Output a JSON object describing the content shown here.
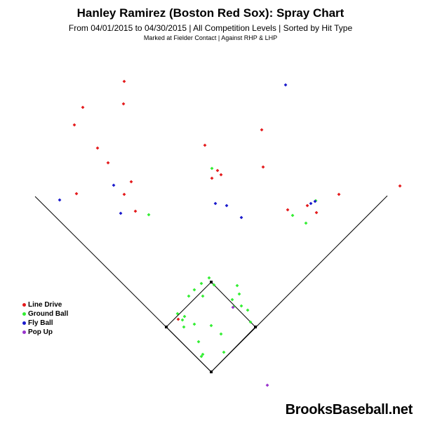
{
  "title": "Hanley Ramirez (Boston Red Sox): Spray Chart",
  "subtitle": "From 04/01/2015 to 04/30/2015 | All Competition Levels | Sorted by Hit Type",
  "note": "Marked at Fielder Contact |   Against RHP & LHP",
  "watermark": "BrooksBaseball.net",
  "legend": [
    {
      "label": "Line Drive",
      "color": "#e41a1c"
    },
    {
      "label": "Ground Ball",
      "color": "#33ee33"
    },
    {
      "label": "Fly Ball",
      "color": "#1a1acc"
    },
    {
      "label": "Pop Up",
      "color": "#9933cc"
    }
  ],
  "chart_data": {
    "type": "scatter",
    "title": "Hanley Ramirez (Boston Red Sox): Spray Chart",
    "xlabel": "",
    "ylabel": "",
    "grid": false,
    "legend_position": "left",
    "series": [
      {
        "name": "Line Drive",
        "color": "#e41a1c",
        "points": [
          [
            177,
            116
          ],
          [
            176,
            148
          ],
          [
            118,
            153
          ],
          [
            106,
            178
          ],
          [
            139,
            211
          ],
          [
            154,
            232
          ],
          [
            187,
            259
          ],
          [
            109,
            276
          ],
          [
            177,
            277
          ],
          [
            193,
            301
          ],
          [
            292,
            207
          ],
          [
            310,
            243
          ],
          [
            315,
            249
          ],
          [
            302,
            254
          ],
          [
            373,
            185
          ],
          [
            375,
            238
          ],
          [
            410,
            299
          ],
          [
            438,
            293
          ],
          [
            451,
            303
          ],
          [
            483,
            277
          ],
          [
            570,
            265
          ],
          [
            254,
            455
          ]
        ]
      },
      {
        "name": "Ground Ball",
        "color": "#33ee33",
        "points": [
          [
            212,
            306
          ],
          [
            302,
            240
          ],
          [
            417,
            307
          ],
          [
            436,
            318
          ],
          [
            450,
            286
          ],
          [
            298,
            396
          ],
          [
            287,
            404
          ],
          [
            305,
            406
          ],
          [
            277,
            413
          ],
          [
            269,
            422
          ],
          [
            289,
            422
          ],
          [
            338,
            407
          ],
          [
            341,
            419
          ],
          [
            331,
            427
          ],
          [
            333,
            437
          ],
          [
            344,
            436
          ],
          [
            353,
            442
          ],
          [
            357,
            459
          ],
          [
            263,
            451
          ],
          [
            253,
            447
          ],
          [
            260,
            456
          ],
          [
            262,
            466
          ],
          [
            277,
            462
          ],
          [
            301,
            464
          ],
          [
            315,
            476
          ],
          [
            283,
            487
          ],
          [
            289,
            505
          ],
          [
            287,
            508
          ],
          [
            319,
            502
          ]
        ]
      },
      {
        "name": "Fly Ball",
        "color": "#1a1acc",
        "points": [
          [
            407,
            121
          ],
          [
            162,
            264
          ],
          [
            85,
            285
          ],
          [
            172,
            304
          ],
          [
            307,
            290
          ],
          [
            323,
            293
          ],
          [
            344,
            310
          ],
          [
            443,
            290
          ],
          [
            449,
            287
          ]
        ]
      },
      {
        "name": "Pop Up",
        "color": "#9933cc",
        "points": [
          [
            332,
            438
          ],
          [
            381,
            549
          ]
        ]
      }
    ]
  }
}
